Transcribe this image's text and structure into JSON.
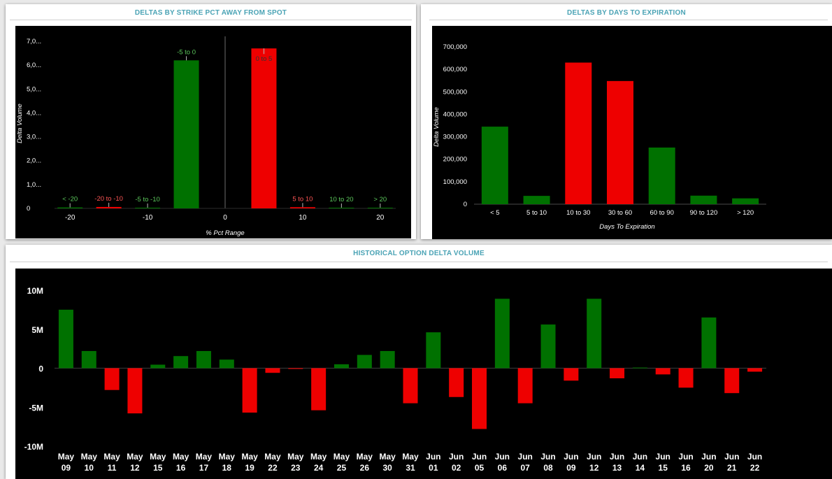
{
  "colors": {
    "positive": "#007100",
    "negative": "#ee0000",
    "title": "#4aa3b5",
    "positive_label": "#5cc95c",
    "negative_label": "#ff5555"
  },
  "panels": {
    "strike": {
      "title": "DELTAS BY STRIKE PCT AWAY FROM SPOT"
    },
    "expiry": {
      "title": "DELTAS BY DAYS TO EXPIRATION"
    },
    "history": {
      "title": "HISTORICAL OPTION DELTA VOLUME"
    }
  },
  "chart_data": [
    {
      "id": "strike",
      "type": "bar",
      "title": "DELTAS BY STRIKE PCT AWAY FROM SPOT",
      "xlabel": "% Pct Range",
      "ylabel": "Delta Volume",
      "xlim": [
        -22,
        22
      ],
      "ylim": [
        0,
        7000000
      ],
      "x_ticks": [
        -20,
        -10,
        0,
        10,
        20
      ],
      "y_ticks": [
        0,
        1000000,
        2000000,
        3000000,
        4000000,
        5000000,
        6000000,
        7000000
      ],
      "y_tick_labels": [
        "0",
        "1,0...",
        "2,0...",
        "3,0...",
        "4,0...",
        "5,0...",
        "6,0...",
        "7,0..."
      ],
      "bars": [
        {
          "label": "< -20",
          "x": -20,
          "value": 40000,
          "color": "positive"
        },
        {
          "label": "-20 to -10",
          "x": -15,
          "value": 60000,
          "color": "negative"
        },
        {
          "label": "-5 to -10",
          "x": -10,
          "value": 30000,
          "color": "positive"
        },
        {
          "label": "-5 to 0",
          "x": -5,
          "value": 6200000,
          "color": "positive"
        },
        {
          "label": "0 to 5",
          "x": 5,
          "value": 6700000,
          "color": "negative"
        },
        {
          "label": "5 to 10",
          "x": 10,
          "value": 50000,
          "color": "negative"
        },
        {
          "label": "10 to 20",
          "x": 15,
          "value": 30000,
          "color": "positive"
        },
        {
          "label": "> 20",
          "x": 20,
          "value": 30000,
          "color": "positive"
        }
      ]
    },
    {
      "id": "expiry",
      "type": "bar",
      "title": "DELTAS BY DAYS TO EXPIRATION",
      "xlabel": "Days To Expiration",
      "ylabel": "Delta Volume",
      "ylim": [
        0,
        700000
      ],
      "y_ticks": [
        0,
        100000,
        200000,
        300000,
        400000,
        500000,
        600000,
        700000
      ],
      "y_tick_labels": [
        "0",
        "100,000",
        "200,000",
        "300,000",
        "400,000",
        "500,000",
        "600,000",
        "700,000"
      ],
      "categories": [
        "< 5",
        "5 to 10",
        "10 to 30",
        "30 to 60",
        "60 to 90",
        "90 to 120",
        "> 120"
      ],
      "values": [
        345000,
        37000,
        630000,
        548000,
        252000,
        38000,
        26000
      ],
      "colors": [
        "positive",
        "positive",
        "negative",
        "negative",
        "positive",
        "positive",
        "positive"
      ]
    },
    {
      "id": "history",
      "type": "bar",
      "title": "HISTORICAL OPTION DELTA VOLUME",
      "xlabel": "",
      "ylabel": "",
      "ylim": [
        -10000000,
        10000000
      ],
      "y_ticks": [
        -10000000,
        -5000000,
        0,
        5000000,
        10000000
      ],
      "y_tick_labels": [
        "-10M",
        "-5M",
        "0",
        "5M",
        "10M"
      ],
      "categories": [
        [
          "May",
          "09"
        ],
        [
          "May",
          "10"
        ],
        [
          "May",
          "11"
        ],
        [
          "May",
          "12"
        ],
        [
          "May",
          "15"
        ],
        [
          "May",
          "16"
        ],
        [
          "May",
          "17"
        ],
        [
          "May",
          "18"
        ],
        [
          "May",
          "19"
        ],
        [
          "May",
          "22"
        ],
        [
          "May",
          "23"
        ],
        [
          "May",
          "24"
        ],
        [
          "May",
          "25"
        ],
        [
          "May",
          "26"
        ],
        [
          "May",
          "30"
        ],
        [
          "May",
          "31"
        ],
        [
          "Jun",
          "01"
        ],
        [
          "Jun",
          "02"
        ],
        [
          "Jun",
          "05"
        ],
        [
          "Jun",
          "06"
        ],
        [
          "Jun",
          "07"
        ],
        [
          "Jun",
          "08"
        ],
        [
          "Jun",
          "09"
        ],
        [
          "Jun",
          "12"
        ],
        [
          "Jun",
          "13"
        ],
        [
          "Jun",
          "14"
        ],
        [
          "Jun",
          "15"
        ],
        [
          "Jun",
          "16"
        ],
        [
          "Jun",
          "20"
        ],
        [
          "Jun",
          "21"
        ],
        [
          "Jun",
          "22"
        ]
      ],
      "values": [
        7500000,
        2200000,
        -2800000,
        -5800000,
        450000,
        1550000,
        2200000,
        1100000,
        -5700000,
        -600000,
        -100000,
        -5400000,
        500000,
        1700000,
        2200000,
        -4500000,
        4600000,
        -3700000,
        -7800000,
        8900000,
        -4500000,
        5600000,
        -1600000,
        8900000,
        -1300000,
        80000,
        -800000,
        -2500000,
        6500000,
        -3200000,
        -450000
      ]
    }
  ]
}
